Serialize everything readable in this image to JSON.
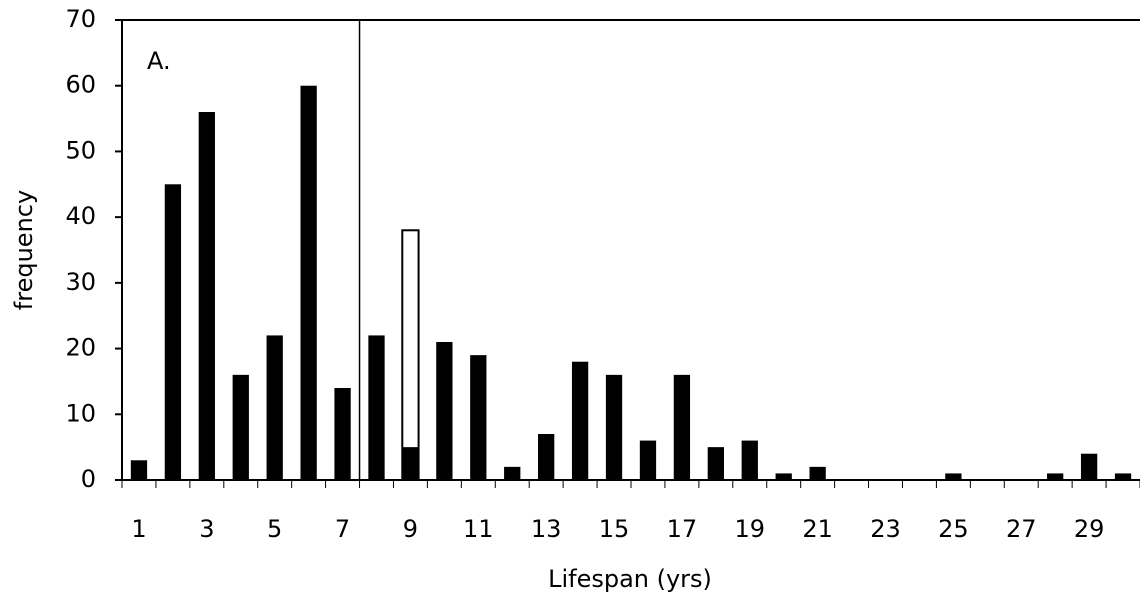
{
  "chart_data": {
    "type": "bar",
    "annotation": "A.",
    "x_label": "Lifespan (yrs)",
    "y_label": "frequency",
    "categories": [
      "1",
      null,
      "3",
      null,
      "5",
      null,
      "7",
      null,
      "9",
      null,
      "11",
      null,
      "13",
      null,
      "15",
      null,
      "17",
      null,
      "19",
      null,
      "21",
      null,
      "23",
      null,
      "25",
      null,
      "27",
      null,
      "29",
      null
    ],
    "series": [
      {
        "color": "#000000",
        "values": [
          3,
          45,
          56,
          16,
          22,
          60,
          14,
          22,
          5,
          21,
          19,
          2,
          7,
          18,
          16,
          6,
          16,
          5,
          6,
          1,
          2,
          0,
          0,
          0,
          1,
          0,
          0,
          1,
          4,
          1
        ]
      },
      {
        "color": "#ffffff",
        "edgecolor": "#000000",
        "values": [
          null,
          null,
          null,
          null,
          null,
          null,
          null,
          null,
          38,
          null,
          null,
          null,
          null,
          null,
          null,
          null,
          null,
          null,
          null,
          null,
          null,
          null,
          null,
          null,
          null,
          null,
          null,
          null,
          null,
          null
        ]
      }
    ],
    "ylim": [
      0,
      70
    ],
    "yticks": [
      0,
      10,
      20,
      30,
      40,
      50,
      60,
      70
    ]
  }
}
